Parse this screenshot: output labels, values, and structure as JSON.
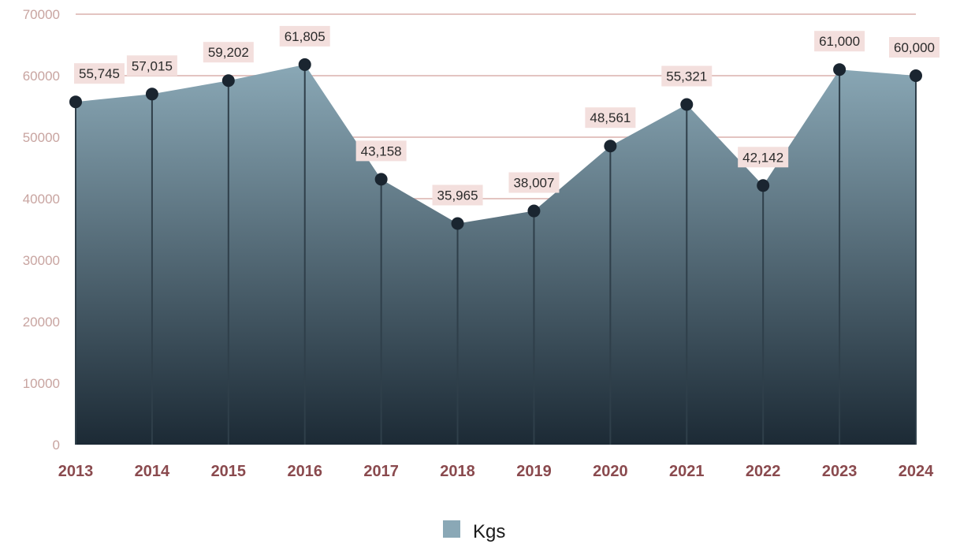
{
  "chart_data": {
    "type": "area",
    "categories": [
      "2013",
      "2014",
      "2015",
      "2016",
      "2017",
      "2018",
      "2019",
      "2020",
      "2021",
      "2022",
      "2023",
      "2024"
    ],
    "series": [
      {
        "name": "Kgs",
        "values": [
          55745,
          57015,
          59202,
          61805,
          43158,
          35965,
          38007,
          48561,
          55321,
          42142,
          61000,
          60000
        ],
        "data_labels": [
          "55,745",
          "57,015",
          "59,202",
          "61,805",
          "43,158",
          "35,965",
          "38,007",
          "48,561",
          "55,321",
          "42,142",
          "61,000",
          "60,000"
        ]
      }
    ],
    "y_ticks": [
      "0",
      "10000",
      "20000",
      "30000",
      "40000",
      "50000",
      "60000",
      "70000"
    ],
    "ylim": [
      0,
      70000
    ],
    "grid": true,
    "legend_position": "bottom-center",
    "colors": {
      "area_top": "#8aa8b6",
      "area_bottom": "#1c2a35",
      "gridline": "#e3c4c1",
      "drop_line": "#2f3f4a",
      "marker": "#1a2530",
      "label_bg": "#f3dfdd",
      "ytick_text": "#c8a4a0",
      "xtick_text": "#8a4a4e",
      "legend_swatch": "#8aa8b6"
    }
  }
}
